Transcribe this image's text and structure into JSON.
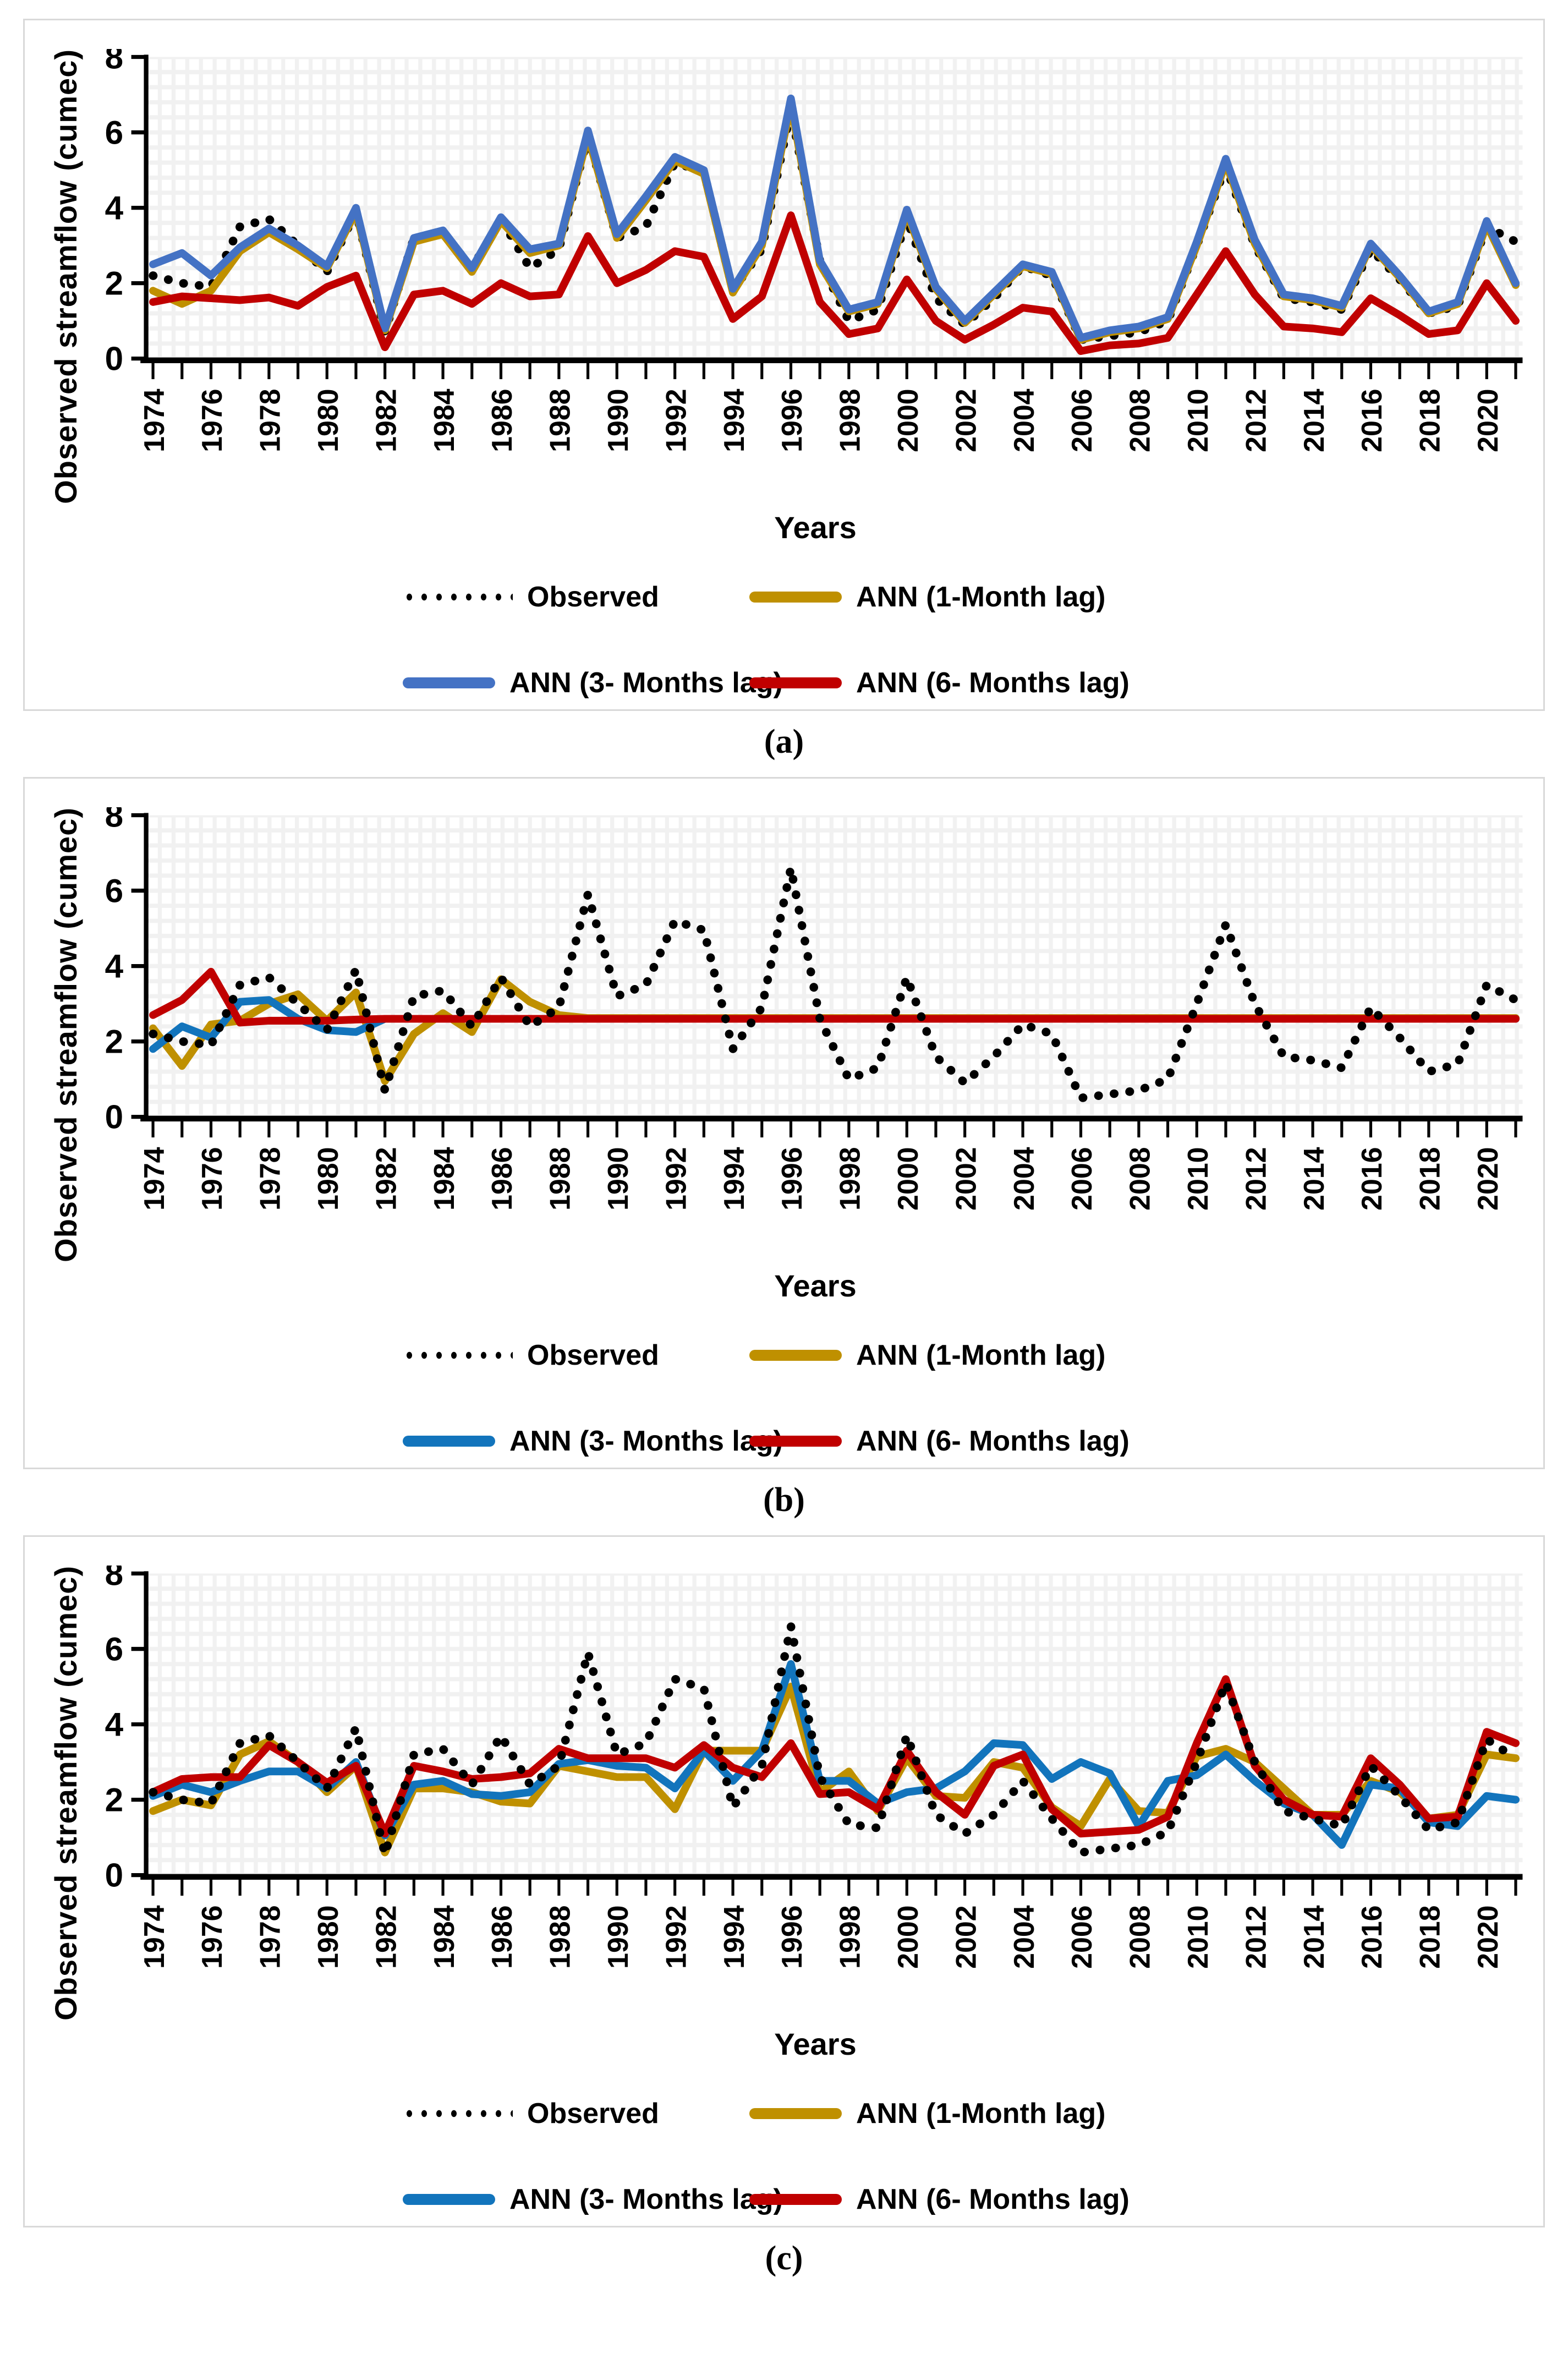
{
  "axis": {
    "y_label": "Observed streamflow (cumec)",
    "x_label": "Years",
    "y_max": 8
  },
  "captions": [
    "(a)",
    "(b)",
    "(c)"
  ],
  "colors": {
    "observed": "#000000",
    "ann_1month": "#BF9000",
    "ann_3months_panel_a": "#4472C4",
    "ann_3months_panel_bc": "#1274BC",
    "ann_6months": "#C00000",
    "grid_line": "#F1F1F1",
    "plot_background": "#FFFFFF",
    "panel_border": "#D9D9D9",
    "axis_color": "#000000"
  },
  "chart_data": [
    {
      "panel": "a",
      "type": "line",
      "title": "",
      "xlabel": "Years",
      "ylabel": "Observed streamflow (cumec)",
      "ylim": [
        0,
        8
      ],
      "yticks": [
        0,
        2,
        4,
        6,
        8
      ],
      "grid_line_color": "#F1F1F1",
      "plot_bg": "#FFFFFF",
      "x": [
        1974,
        1975,
        1976,
        1977,
        1978,
        1979,
        1980,
        1981,
        1982,
        1983,
        1984,
        1985,
        1986,
        1987,
        1988,
        1989,
        1990,
        1991,
        1992,
        1993,
        1994,
        1995,
        1996,
        1997,
        1998,
        1999,
        2000,
        2001,
        2002,
        2003,
        2004,
        2005,
        2006,
        2007,
        2008,
        2009,
        2010,
        2011,
        2012,
        2013,
        2014,
        2015,
        2016,
        2017,
        2018,
        2019,
        2020,
        2021
      ],
      "x_tick_labels": [
        1974,
        1976,
        1978,
        1980,
        1982,
        1984,
        1986,
        1988,
        1990,
        1992,
        1994,
        1996,
        1998,
        2000,
        2002,
        2004,
        2006,
        2008,
        2010,
        2012,
        2014,
        2016,
        2018,
        2020
      ],
      "draw_order": [
        0,
        1,
        2,
        3
      ],
      "series": [
        {
          "name": "Observed",
          "color": "#000000",
          "style": "dotted",
          "values": [
            2.2,
            2.0,
            1.9,
            3.5,
            3.7,
            3.0,
            2.3,
            3.9,
            0.7,
            3.2,
            3.35,
            2.4,
            3.7,
            2.4,
            2.9,
            5.9,
            3.2,
            3.5,
            5.2,
            4.95,
            1.8,
            2.9,
            6.6,
            2.6,
            1.0,
            1.3,
            3.7,
            1.6,
            0.9,
            1.6,
            2.45,
            2.2,
            0.5,
            0.6,
            0.7,
            1.0,
            3.0,
            5.1,
            3.0,
            1.6,
            1.5,
            1.3,
            2.9,
            2.1,
            1.2,
            1.4,
            3.5,
            3.1
          ]
        },
        {
          "name": "ANN (1-Month lag)",
          "color": "#BF9000",
          "style": "solid",
          "values": [
            1.8,
            1.45,
            1.8,
            2.85,
            3.35,
            2.9,
            2.4,
            3.9,
            0.75,
            3.1,
            3.3,
            2.3,
            3.65,
            2.8,
            3.0,
            5.9,
            3.2,
            4.2,
            5.25,
            4.9,
            1.75,
            3.0,
            6.75,
            2.5,
            1.25,
            1.45,
            3.85,
            1.85,
            0.95,
            1.7,
            2.45,
            2.25,
            0.5,
            0.7,
            0.8,
            1.05,
            3.0,
            5.2,
            3.05,
            1.65,
            1.55,
            1.35,
            3.0,
            2.15,
            1.2,
            1.45,
            3.55,
            1.95
          ]
        },
        {
          "name": "ANN (3- Months lag)",
          "color": "#4472C4",
          "style": "solid",
          "values": [
            2.5,
            2.8,
            2.2,
            2.95,
            3.45,
            3.0,
            2.45,
            4.0,
            0.8,
            3.2,
            3.4,
            2.4,
            3.75,
            2.9,
            3.05,
            6.05,
            3.3,
            4.3,
            5.35,
            5.0,
            1.85,
            3.1,
            6.9,
            2.6,
            1.3,
            1.5,
            3.95,
            1.9,
            1.0,
            1.75,
            2.5,
            2.3,
            0.55,
            0.75,
            0.85,
            1.1,
            3.1,
            5.3,
            3.15,
            1.7,
            1.6,
            1.4,
            3.05,
            2.2,
            1.25,
            1.5,
            3.65,
            2.0
          ]
        },
        {
          "name": "ANN (6- Months lag)",
          "color": "#C00000",
          "style": "solid",
          "values": [
            1.5,
            1.65,
            1.6,
            1.55,
            1.62,
            1.4,
            1.9,
            2.2,
            0.3,
            1.7,
            1.8,
            1.45,
            2.0,
            1.65,
            1.7,
            3.25,
            2.0,
            2.35,
            2.85,
            2.7,
            1.05,
            1.65,
            3.8,
            1.5,
            0.65,
            0.8,
            2.1,
            1.0,
            0.5,
            0.9,
            1.35,
            1.25,
            0.2,
            0.35,
            0.4,
            0.55,
            1.7,
            2.85,
            1.7,
            0.85,
            0.8,
            0.7,
            1.6,
            1.15,
            0.65,
            0.75,
            2.0,
            1.0
          ]
        }
      ]
    },
    {
      "panel": "b",
      "type": "line",
      "title": "",
      "xlabel": "Years",
      "ylabel": "Observed streamflow (cumec)",
      "ylim": [
        0,
        8
      ],
      "yticks": [
        0,
        2,
        4,
        6,
        8
      ],
      "grid_line_color": "#F1F1F1",
      "plot_bg": "#FFFFFF",
      "x": [
        1974,
        1975,
        1976,
        1977,
        1978,
        1979,
        1980,
        1981,
        1982,
        1983,
        1984,
        1985,
        1986,
        1987,
        1988,
        1989,
        1990,
        1991,
        1992,
        1993,
        1994,
        1995,
        1996,
        1997,
        1998,
        1999,
        2000,
        2001,
        2002,
        2003,
        2004,
        2005,
        2006,
        2007,
        2008,
        2009,
        2010,
        2011,
        2012,
        2013,
        2014,
        2015,
        2016,
        2017,
        2018,
        2019,
        2020,
        2021
      ],
      "x_tick_labels": [
        1974,
        1976,
        1978,
        1980,
        1982,
        1984,
        1986,
        1988,
        1990,
        1992,
        1994,
        1996,
        1998,
        2000,
        2002,
        2004,
        2006,
        2008,
        2010,
        2012,
        2014,
        2016,
        2018,
        2020
      ],
      "draw_order": [
        1,
        2,
        3,
        0
      ],
      "series": [
        {
          "name": "Observed",
          "color": "#000000",
          "style": "dotted",
          "values": [
            2.2,
            2.0,
            1.9,
            3.5,
            3.7,
            3.0,
            2.3,
            3.9,
            0.7,
            3.2,
            3.35,
            2.4,
            3.7,
            2.4,
            2.9,
            5.9,
            3.2,
            3.5,
            5.2,
            4.95,
            1.8,
            2.9,
            6.6,
            2.6,
            1.0,
            1.3,
            3.7,
            1.6,
            0.9,
            1.6,
            2.45,
            2.2,
            0.5,
            0.6,
            0.7,
            1.0,
            3.0,
            5.1,
            3.0,
            1.6,
            1.5,
            1.3,
            2.9,
            2.1,
            1.2,
            1.4,
            3.5,
            3.1
          ]
        },
        {
          "name": "ANN (1-Month lag)",
          "color": "#BF9000",
          "style": "solid",
          "values": [
            2.35,
            1.35,
            2.45,
            2.55,
            3.0,
            3.25,
            2.55,
            3.3,
            0.95,
            2.2,
            2.75,
            2.25,
            3.65,
            3.05,
            2.7,
            2.62,
            2.62,
            2.62,
            2.62,
            2.62,
            2.62,
            2.62,
            2.62,
            2.62,
            2.62,
            2.62,
            2.62,
            2.62,
            2.62,
            2.62,
            2.62,
            2.62,
            2.62,
            2.62,
            2.62,
            2.62,
            2.62,
            2.62,
            2.62,
            2.62,
            2.62,
            2.62,
            2.62,
            2.62,
            2.62,
            2.62,
            2.62,
            2.62
          ]
        },
        {
          "name": "ANN (3- Months lag)",
          "color": "#1274BC",
          "style": "solid",
          "values": [
            1.8,
            2.4,
            2.1,
            3.05,
            3.1,
            2.6,
            2.3,
            2.25,
            2.6,
            2.6,
            2.6,
            2.6,
            2.6,
            2.6,
            2.6,
            2.6,
            2.6,
            2.6,
            2.6,
            2.6,
            2.6,
            2.6,
            2.6,
            2.6,
            2.6,
            2.6,
            2.6,
            2.6,
            2.6,
            2.6,
            2.6,
            2.6,
            2.6,
            2.6,
            2.6,
            2.6,
            2.6,
            2.6,
            2.6,
            2.6,
            2.6,
            2.6,
            2.6,
            2.6,
            2.6,
            2.6,
            2.6,
            2.6
          ]
        },
        {
          "name": "ANN (6- Months lag)",
          "color": "#C00000",
          "style": "solid",
          "values": [
            2.7,
            3.1,
            3.85,
            2.5,
            2.55,
            2.55,
            2.55,
            2.58,
            2.6,
            2.6,
            2.6,
            2.6,
            2.6,
            2.6,
            2.6,
            2.6,
            2.6,
            2.6,
            2.6,
            2.6,
            2.6,
            2.6,
            2.6,
            2.6,
            2.6,
            2.6,
            2.6,
            2.6,
            2.6,
            2.6,
            2.6,
            2.6,
            2.6,
            2.6,
            2.6,
            2.6,
            2.6,
            2.6,
            2.6,
            2.6,
            2.6,
            2.6,
            2.6,
            2.6,
            2.6,
            2.6,
            2.6,
            2.6
          ]
        }
      ]
    },
    {
      "panel": "c",
      "type": "line",
      "title": "",
      "xlabel": "Years",
      "ylabel": "Observed streamflow (cumec)",
      "ylim": [
        0,
        8
      ],
      "yticks": [
        0,
        2,
        4,
        6,
        8
      ],
      "grid_line_color": "#F1F1F1",
      "plot_bg": "#FFFFFF",
      "x": [
        1974,
        1975,
        1976,
        1977,
        1978,
        1979,
        1980,
        1981,
        1982,
        1983,
        1984,
        1985,
        1986,
        1987,
        1988,
        1989,
        1990,
        1991,
        1992,
        1993,
        1994,
        1995,
        1996,
        1997,
        1998,
        1999,
        2000,
        2001,
        2002,
        2003,
        2004,
        2005,
        2006,
        2007,
        2008,
        2009,
        2010,
        2011,
        2012,
        2013,
        2014,
        2015,
        2016,
        2017,
        2018,
        2019,
        2020,
        2021
      ],
      "x_tick_labels": [
        1974,
        1976,
        1978,
        1980,
        1982,
        1984,
        1986,
        1988,
        1990,
        1992,
        1994,
        1996,
        1998,
        2000,
        2002,
        2004,
        2006,
        2008,
        2010,
        2012,
        2014,
        2016,
        2018,
        2020
      ],
      "draw_order": [
        1,
        2,
        3,
        0
      ],
      "series": [
        {
          "name": "Observed",
          "color": "#000000",
          "style": "dotted",
          "values": [
            2.2,
            2.0,
            1.9,
            3.5,
            3.7,
            3.0,
            2.3,
            3.9,
            0.55,
            3.2,
            3.35,
            2.4,
            3.7,
            2.4,
            2.9,
            5.9,
            3.2,
            3.5,
            5.2,
            4.95,
            1.8,
            2.9,
            6.6,
            2.6,
            1.35,
            1.25,
            3.7,
            1.6,
            1.1,
            1.6,
            2.5,
            1.5,
            0.6,
            0.7,
            0.8,
            1.15,
            3.0,
            5.1,
            3.0,
            1.7,
            1.5,
            1.3,
            2.9,
            2.1,
            1.2,
            1.4,
            3.6,
            3.1
          ]
        },
        {
          "name": "ANN (1-Month lag)",
          "color": "#BF9000",
          "style": "solid",
          "values": [
            1.7,
            2.0,
            1.85,
            3.2,
            3.55,
            3.0,
            2.2,
            2.9,
            0.6,
            2.3,
            2.3,
            2.2,
            1.95,
            1.9,
            2.9,
            2.75,
            2.6,
            2.6,
            1.75,
            3.3,
            3.3,
            3.3,
            5.0,
            2.2,
            2.75,
            1.7,
            3.1,
            2.1,
            2.05,
            3.0,
            2.85,
            1.8,
            1.3,
            2.55,
            1.7,
            1.65,
            3.15,
            3.35,
            3.0,
            2.3,
            1.6,
            1.6,
            2.5,
            2.2,
            1.5,
            1.6,
            3.2,
            3.1
          ]
        },
        {
          "name": "ANN (3- Months lag)",
          "color": "#1274BC",
          "style": "solid",
          "values": [
            2.1,
            2.4,
            2.2,
            2.5,
            2.75,
            2.75,
            2.3,
            3.0,
            1.05,
            2.4,
            2.5,
            2.15,
            2.1,
            2.2,
            2.95,
            3.05,
            2.9,
            2.85,
            2.3,
            3.3,
            2.5,
            3.3,
            5.6,
            2.5,
            2.5,
            1.9,
            2.2,
            2.3,
            2.75,
            3.5,
            3.45,
            2.55,
            3.0,
            2.7,
            1.3,
            2.5,
            2.65,
            3.2,
            2.5,
            1.9,
            1.6,
            0.8,
            2.4,
            2.3,
            1.4,
            1.3,
            2.1,
            2.0
          ]
        },
        {
          "name": "ANN (6- Months lag)",
          "color": "#C00000",
          "style": "solid",
          "values": [
            2.2,
            2.55,
            2.6,
            2.6,
            3.45,
            3.0,
            2.45,
            2.9,
            1.1,
            2.9,
            2.75,
            2.55,
            2.6,
            2.7,
            3.35,
            3.1,
            3.1,
            3.1,
            2.85,
            3.45,
            2.85,
            2.6,
            3.5,
            2.15,
            2.2,
            1.75,
            3.3,
            2.2,
            1.6,
            2.9,
            3.2,
            1.75,
            1.1,
            1.15,
            1.2,
            1.55,
            3.5,
            5.2,
            2.9,
            2.0,
            1.6,
            1.55,
            3.1,
            2.4,
            1.5,
            1.55,
            3.8,
            3.5
          ]
        }
      ]
    }
  ]
}
